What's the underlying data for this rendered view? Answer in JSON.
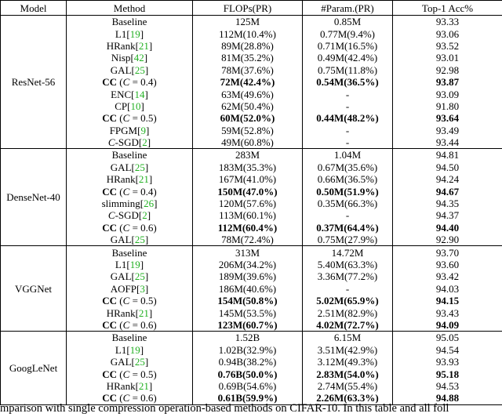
{
  "table": {
    "header": [
      "Model",
      "Method",
      "FLOPs(PR)",
      "#Param.(PR)",
      "Top-1 Acc%"
    ],
    "groups": [
      {
        "model": "ResNet-56",
        "rows": [
          {
            "method": "Baseline",
            "flops": "125M",
            "params": "0.85M",
            "acc": "93.33"
          },
          {
            "method": "L1[19]",
            "flops": "112M(10.4%)",
            "params": "0.77M(9.4%)",
            "acc": "93.06"
          },
          {
            "method": "HRank[21]",
            "flops": "89M(28.8%)",
            "params": "0.71M(16.5%)",
            "acc": "93.52"
          },
          {
            "method": "Nisp[42]",
            "flops": "81M(35.2%)",
            "params": "0.49M(42.4%)",
            "acc": "93.01"
          },
          {
            "method": "GAL[25]",
            "flops": "78M(37.6%)",
            "params": "0.75M(11.8%)",
            "acc": "92.98"
          },
          {
            "method": "CC (C = 0.4)",
            "flops": "72M(42.4%)",
            "params": "0.54M(36.5%)",
            "acc": "93.87",
            "best": true
          },
          {
            "method": "ENC[14]",
            "flops": "63M(49.6%)",
            "params": "-",
            "acc": "93.09"
          },
          {
            "method": "CP[10]",
            "flops": "62M(50.4%)",
            "params": "-",
            "acc": "91.80"
          },
          {
            "method": "CC (C = 0.5)",
            "flops": "60M(52.0%)",
            "params": "0.44M(48.2%)",
            "acc": "93.64",
            "best": true
          },
          {
            "method": "FPGM[9]",
            "flops": "59M(52.8%)",
            "params": "-",
            "acc": "93.49"
          },
          {
            "method": "C-SGD[2]",
            "flops": "49M(60.8%)",
            "params": "-",
            "acc": "93.44"
          }
        ]
      },
      {
        "model": "DenseNet-40",
        "rows": [
          {
            "method": "Baseline",
            "flops": "283M",
            "params": "1.04M",
            "acc": "94.81"
          },
          {
            "method": "GAL[25]",
            "flops": "183M(35.3%)",
            "params": "0.67M(35.6%)",
            "acc": "94.50"
          },
          {
            "method": "HRank[21]",
            "flops": "167M(41.0%)",
            "params": "0.66M(36.5%)",
            "acc": "94.24"
          },
          {
            "method": "CC (C = 0.4)",
            "flops": "150M(47.0%)",
            "params": "0.50M(51.9%)",
            "acc": "94.67",
            "best": true
          },
          {
            "method": "slimming[26]",
            "flops": "120M(57.6%)",
            "params": "0.35M(66.3%)",
            "acc": "94.35"
          },
          {
            "method": "C-SGD[2]",
            "flops": "113M(60.1%)",
            "params": "-",
            "acc": "94.37"
          },
          {
            "method": "CC (C = 0.6)",
            "flops": "112M(60.4%)",
            "params": "0.37M(64.4%)",
            "acc": "94.40",
            "best": true
          },
          {
            "method": "GAL[25]",
            "flops": "78M(72.4%)",
            "params": "0.75M(27.9%)",
            "acc": "92.90"
          }
        ]
      },
      {
        "model": "VGGNet",
        "rows": [
          {
            "method": "Baseline",
            "flops": "313M",
            "params": "14.72M",
            "acc": "93.70"
          },
          {
            "method": "L1[19]",
            "flops": "206M(34.2%)",
            "params": "5.40M(63.3%)",
            "acc": "93.60"
          },
          {
            "method": "GAL[25]",
            "flops": "189M(39.6%)",
            "params": "3.36M(77.2%)",
            "acc": "93.42"
          },
          {
            "method": "AOFP[3]",
            "flops": "186M(40.6%)",
            "params": "-",
            "acc": "94.03"
          },
          {
            "method": "CC (C = 0.5)",
            "flops": "154M(50.8%)",
            "params": "5.02M(65.9%)",
            "acc": "94.15",
            "best": true
          },
          {
            "method": "HRank[21]",
            "flops": "145M(53.5%)",
            "params": "2.51M(82.9%)",
            "acc": "93.43"
          },
          {
            "method": "CC (C = 0.6)",
            "flops": "123M(60.7%)",
            "params": "4.02M(72.7%)",
            "acc": "94.09",
            "best": true
          }
        ]
      },
      {
        "model": "GoogLeNet",
        "rows": [
          {
            "method": "Baseline",
            "flops": "1.52B",
            "params": "6.15M",
            "acc": "95.05"
          },
          {
            "method": "L1[19]",
            "flops": "1.02B(32.9%)",
            "params": "3.51M(42.9%)",
            "acc": "94.54"
          },
          {
            "method": "GAL[25]",
            "flops": "0.94B(38.2%)",
            "params": "3.12M(49.3%)",
            "acc": "93.93"
          },
          {
            "method": "CC (C = 0.5)",
            "flops": "0.76B(50.0%)",
            "params": "2.83M(54.0%)",
            "acc": "95.18",
            "best": true
          },
          {
            "method": "HRank[21]",
            "flops": "0.69B(54.6%)",
            "params": "2.74M(55.4%)",
            "acc": "94.53"
          },
          {
            "method": "CC (C = 0.6)",
            "flops": "0.61B(59.9%)",
            "params": "2.26M(63.3%)",
            "acc": "94.88",
            "best": true
          }
        ]
      }
    ]
  },
  "caption": "mparison with single compression operation-based methods on CIFAR-10. In this table and all foll"
}
